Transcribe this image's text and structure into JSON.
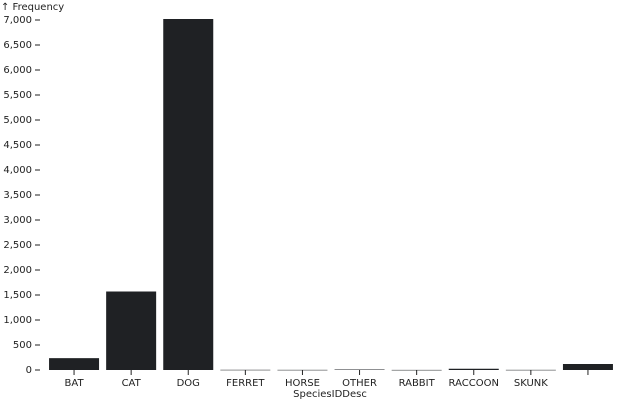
{
  "chart_data": {
    "type": "bar",
    "y_label": "↑ Frequency",
    "x_label": "SpeciesIDDesc",
    "categories": [
      "BAT",
      "CAT",
      "DOG",
      "FERRET",
      "HORSE",
      "OTHER",
      "RABBIT",
      "RACCOON",
      "SKUNK",
      null
    ],
    "values": [
      237,
      1570,
      7020,
      4,
      3,
      10,
      2,
      25,
      3,
      120
    ],
    "color": "#1f2124",
    "ylim": [
      0,
      7000
    ],
    "yticks": [
      0,
      500,
      {
        "value": 1000,
        "label": "1,000"
      },
      {
        "value": 1500,
        "label": "1,500"
      },
      {
        "value": 2000,
        "label": "2,000"
      },
      {
        "value": 2500,
        "label": "2,500"
      },
      {
        "value": 3000,
        "label": "3,000"
      },
      {
        "value": 3500,
        "label": "3,500"
      },
      {
        "value": 4000,
        "label": "4,000"
      },
      {
        "value": 4500,
        "label": "4,500"
      },
      {
        "value": 5000,
        "label": "5,000"
      },
      {
        "value": 5500,
        "label": "5,500"
      },
      {
        "value": 6000,
        "label": "6,000"
      },
      {
        "value": 6500,
        "label": "6,500"
      },
      {
        "value": 7000,
        "label": "7,000"
      }
    ]
  }
}
